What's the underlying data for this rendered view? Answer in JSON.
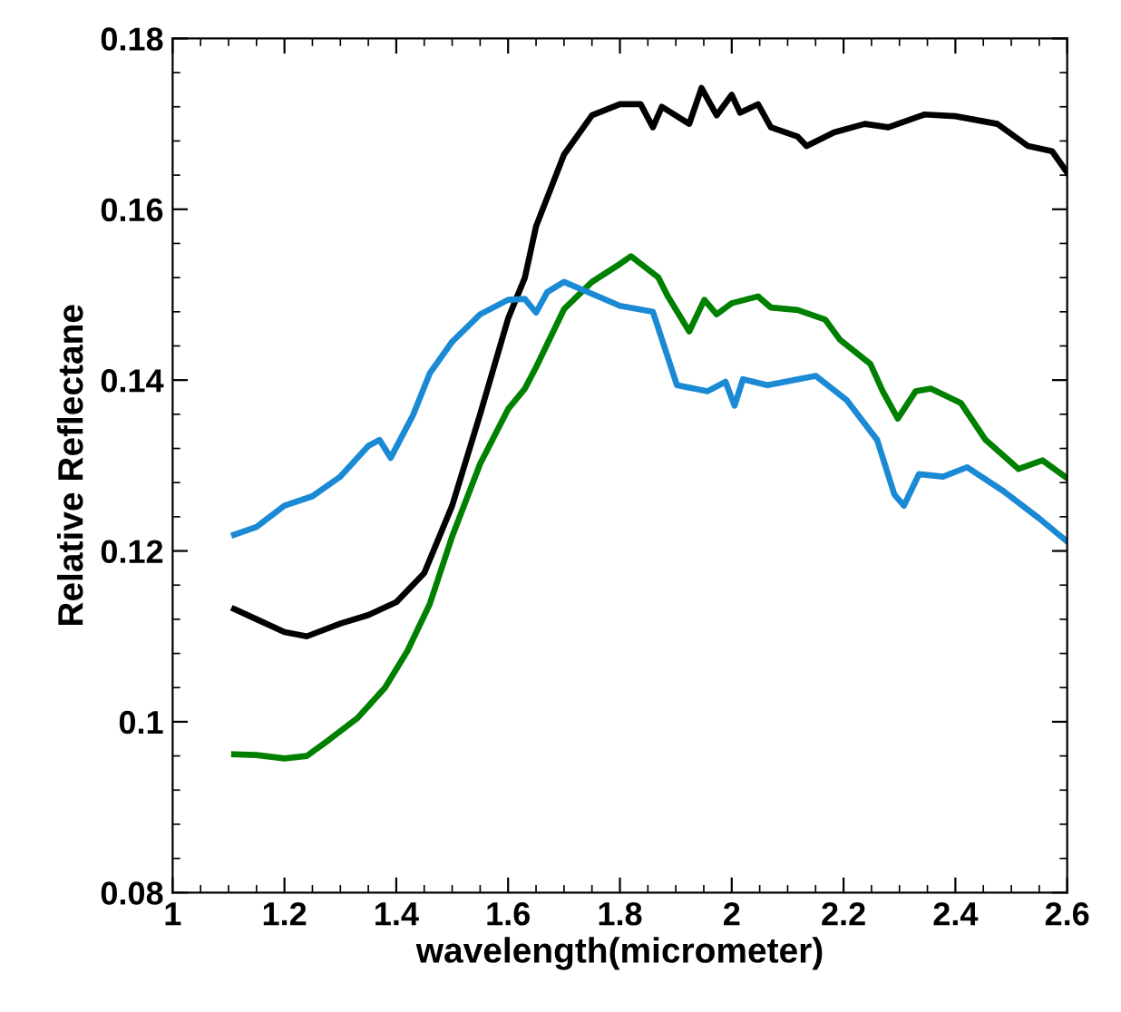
{
  "chart_data": {
    "type": "line",
    "xlabel": "wavelength(micrometer)",
    "ylabel": "Relative Reflectane",
    "xlim": [
      1,
      2.6
    ],
    "ylim": [
      0.08,
      0.18
    ],
    "xticks": [
      1,
      1.2,
      1.4,
      1.6,
      1.8,
      2,
      2.2,
      2.4,
      2.6
    ],
    "yticks": [
      0.08,
      0.1,
      0.12,
      0.14,
      0.16,
      0.18
    ],
    "grid": false,
    "marker": "none",
    "line_style": "solid",
    "series": [
      {
        "color": "#000000",
        "x": [
          1.11,
          1.15,
          1.2,
          1.24,
          1.3,
          1.35,
          1.4,
          1.45,
          1.5,
          1.55,
          1.6,
          1.63,
          1.65,
          1.7,
          1.75,
          1.8,
          1.837,
          1.859,
          1.875,
          1.924,
          1.946,
          1.973,
          2.0,
          2.015,
          2.047,
          2.07,
          2.118,
          2.134,
          2.183,
          2.238,
          2.28,
          2.345,
          2.4,
          2.475,
          2.53,
          2.573,
          2.6
        ],
        "values": [
          0.1132,
          0.112,
          0.1105,
          0.11,
          0.1115,
          0.1125,
          0.114,
          0.1174,
          0.1253,
          0.136,
          0.1472,
          0.152,
          0.158,
          0.1664,
          0.171,
          0.1723,
          0.1723,
          0.1696,
          0.172,
          0.17,
          0.1742,
          0.171,
          0.1734,
          0.1713,
          0.1723,
          0.1696,
          0.1685,
          0.1674,
          0.169,
          0.17,
          0.1696,
          0.1711,
          0.1709,
          0.17,
          0.1674,
          0.1668,
          0.1643
        ]
      },
      {
        "color": "#008000",
        "x": [
          1.11,
          1.15,
          1.2,
          1.24,
          1.28,
          1.33,
          1.38,
          1.42,
          1.46,
          1.5,
          1.55,
          1.6,
          1.63,
          1.65,
          1.7,
          1.75,
          1.8,
          1.82,
          1.869,
          1.885,
          1.924,
          1.951,
          1.973,
          2.0,
          2.047,
          2.07,
          2.118,
          2.167,
          2.194,
          2.248,
          2.27,
          2.297,
          2.329,
          2.356,
          2.41,
          2.454,
          2.513,
          2.556,
          2.6
        ],
        "values": [
          0.0962,
          0.0961,
          0.0957,
          0.096,
          0.0979,
          0.1004,
          0.104,
          0.1083,
          0.1138,
          0.1217,
          0.1302,
          0.1366,
          0.139,
          0.1415,
          0.1483,
          0.1515,
          0.1536,
          0.1545,
          0.152,
          0.1499,
          0.1457,
          0.1494,
          0.1477,
          0.149,
          0.1498,
          0.1485,
          0.1482,
          0.1471,
          0.1447,
          0.1419,
          0.1387,
          0.1355,
          0.1387,
          0.139,
          0.1373,
          0.133,
          0.1296,
          0.1306,
          0.1285
        ]
      },
      {
        "color": "#1a8ad4",
        "x": [
          1.11,
          1.15,
          1.2,
          1.25,
          1.3,
          1.35,
          1.37,
          1.39,
          1.43,
          1.46,
          1.5,
          1.55,
          1.6,
          1.63,
          1.65,
          1.67,
          1.7,
          1.75,
          1.8,
          1.859,
          1.902,
          1.957,
          1.989,
          2.005,
          2.02,
          2.064,
          2.15,
          2.205,
          2.26,
          2.291,
          2.308,
          2.335,
          2.378,
          2.421,
          2.486,
          2.55,
          2.6
        ],
        "values": [
          0.1219,
          0.1228,
          0.1253,
          0.1264,
          0.1287,
          0.1323,
          0.133,
          0.1309,
          0.1359,
          0.1408,
          0.1445,
          0.1477,
          0.1494,
          0.1495,
          0.1479,
          0.1503,
          0.1515,
          0.1501,
          0.1487,
          0.148,
          0.1394,
          0.1387,
          0.1398,
          0.137,
          0.1401,
          0.1394,
          0.1405,
          0.1377,
          0.133,
          0.1266,
          0.1253,
          0.129,
          0.1287,
          0.1298,
          0.127,
          0.1238,
          0.1211
        ]
      }
    ]
  }
}
